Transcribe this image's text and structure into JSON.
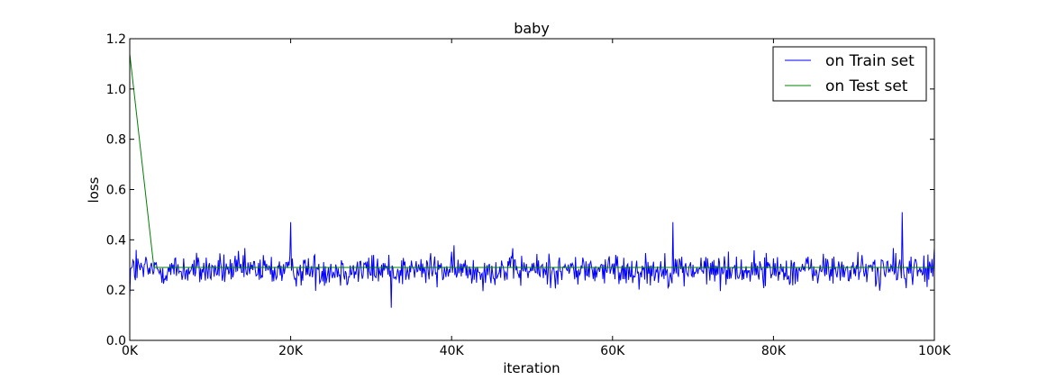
{
  "chart_data": {
    "type": "line",
    "title": "baby",
    "xlabel": "iteration",
    "ylabel": "loss",
    "xlim": [
      0,
      100000
    ],
    "ylim": [
      0,
      1.2
    ],
    "xticks": [
      0,
      20000,
      40000,
      60000,
      80000,
      100000
    ],
    "xtick_labels": [
      "0K",
      "20K",
      "40K",
      "60K",
      "80K",
      "100K"
    ],
    "yticks": [
      0.0,
      0.2,
      0.4,
      0.6,
      0.8,
      1.0,
      1.2
    ],
    "ytick_labels": [
      "0.0",
      "0.2",
      "0.4",
      "0.6",
      "0.8",
      "1.0",
      "1.2"
    ],
    "grid": false,
    "legend_position": "top-right",
    "series": [
      {
        "name": "on Train set",
        "color": "#0000ff",
        "kind": "noisy",
        "x_range": [
          0,
          100000
        ],
        "mean": 0.28,
        "approx_min": 0.13,
        "approx_max": 0.51,
        "key_points": [
          [
            0,
            0.17
          ],
          [
            800,
            0.36
          ],
          [
            20000,
            0.47
          ],
          [
            32500,
            0.13
          ],
          [
            67500,
            0.47
          ],
          [
            96000,
            0.51
          ],
          [
            100000,
            0.37
          ]
        ]
      },
      {
        "name": "on Test set",
        "color": "#008000",
        "kind": "line",
        "x": [
          0,
          3000,
          100000
        ],
        "y": [
          1.14,
          0.29,
          0.29
        ]
      }
    ]
  }
}
